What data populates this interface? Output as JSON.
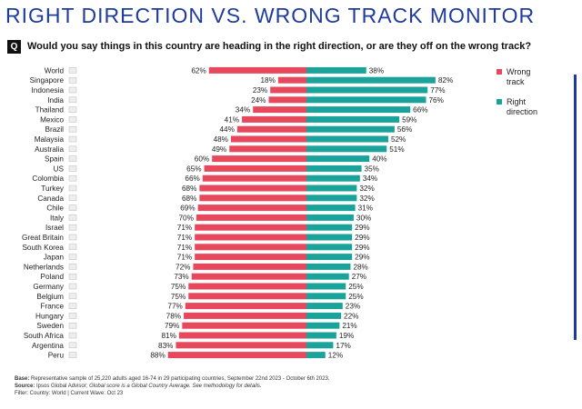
{
  "header": {
    "title": "RIGHT DIRECTION VS. WRONG TRACK MONITOR",
    "q_badge": "Q",
    "question": "Would you say things in this country are heading in the right direction, or are they off on the wrong track?"
  },
  "colors": {
    "wrong": "#e8485c",
    "right": "#1aa39a",
    "accent": "#1f3b9b"
  },
  "legend": {
    "wrong_label": "Wrong track",
    "right_label": "Right direction"
  },
  "chart_data": {
    "type": "bar",
    "orientation": "horizontal-diverging",
    "categories": [
      "World",
      "Singapore",
      "Indonesia",
      "India",
      "Thailand",
      "Mexico",
      "Brazil",
      "Malaysia",
      "Australia",
      "Spain",
      "US",
      "Colombia",
      "Turkey",
      "Canada",
      "Chile",
      "Italy",
      "Israel",
      "Great Britain",
      "South Korea",
      "Japan",
      "Netherlands",
      "Poland",
      "Germany",
      "Belgium",
      "France",
      "Hungary",
      "Sweden",
      "South Africa",
      "Argentina",
      "Peru"
    ],
    "series": [
      {
        "name": "Wrong track",
        "values": [
          62,
          18,
          23,
          24,
          34,
          41,
          44,
          48,
          49,
          60,
          65,
          66,
          68,
          68,
          69,
          70,
          71,
          71,
          71,
          71,
          72,
          73,
          75,
          75,
          77,
          78,
          79,
          81,
          83,
          88
        ]
      },
      {
        "name": "Right direction",
        "values": [
          38,
          82,
          77,
          76,
          66,
          59,
          56,
          52,
          51,
          40,
          35,
          34,
          32,
          32,
          31,
          30,
          29,
          29,
          29,
          29,
          28,
          27,
          25,
          25,
          23,
          22,
          21,
          19,
          17,
          12
        ]
      }
    ],
    "value_suffix": "%",
    "xlim": [
      0,
      100
    ]
  },
  "footer": {
    "base_label": "Base:",
    "base_text": "Representative sample of 25,220 adults aged 16-74 in 29 participating countries, September 22nd 2023 - October 6th 2023.",
    "source_label": "Source:",
    "source_text": "Ipsos Global Advisor;",
    "source_note": "Global score is a Global Country Average. See methodology for details.",
    "filter_text": "Filter: Country: World | Current Wave: Oct 23"
  }
}
